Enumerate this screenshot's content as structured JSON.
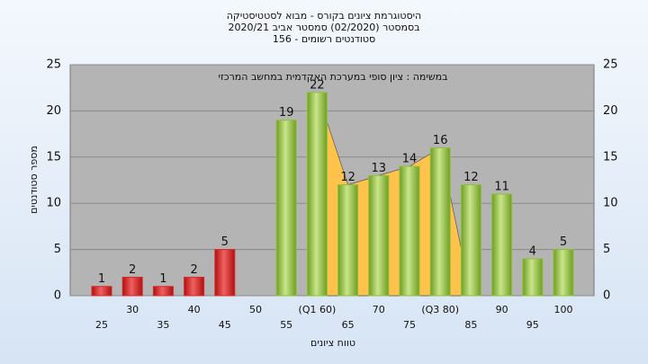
{
  "chart_data": {
    "type": "bar",
    "title_lines": [
      "היסטוגרמת ציונים בקורס - מבוא לסטטיסטיקה",
      "בסמסטר  (02/2020)  סמסטר אביב 2020/21",
      "סטודנטים רשומים - 156"
    ],
    "annotation": "במשימה : ציון סופי במערכת האקדמית במחשב המרכזי",
    "y_label": "מספר סטודנטים",
    "x_label": "טווח ציונים",
    "categories": [
      "25",
      "30",
      "35",
      "40",
      "45",
      "50",
      "55",
      "(Q1 60)",
      "65",
      "70",
      "75",
      "(Q3 80)",
      "85",
      "90",
      "95",
      "100"
    ],
    "values": [
      1,
      2,
      1,
      2,
      5,
      null,
      19,
      22,
      12,
      13,
      14,
      16,
      12,
      11,
      4,
      5
    ],
    "colors": [
      "#d62a2a",
      "#d62a2a",
      "#d62a2a",
      "#d62a2a",
      "#d62a2a",
      "#d62a2a",
      "#8fbf3a",
      "#8fbf3a",
      "#8fbf3a",
      "#8fbf3a",
      "#8fbf3a",
      "#8fbf3a",
      "#8fbf3a",
      "#8fbf3a",
      "#8fbf3a",
      "#8fbf3a"
    ],
    "quartile_area_color": "#ffc24a",
    "ylim": [
      0,
      25
    ],
    "yticks": [
      0,
      5,
      10,
      15,
      20,
      25
    ],
    "grid": true
  }
}
